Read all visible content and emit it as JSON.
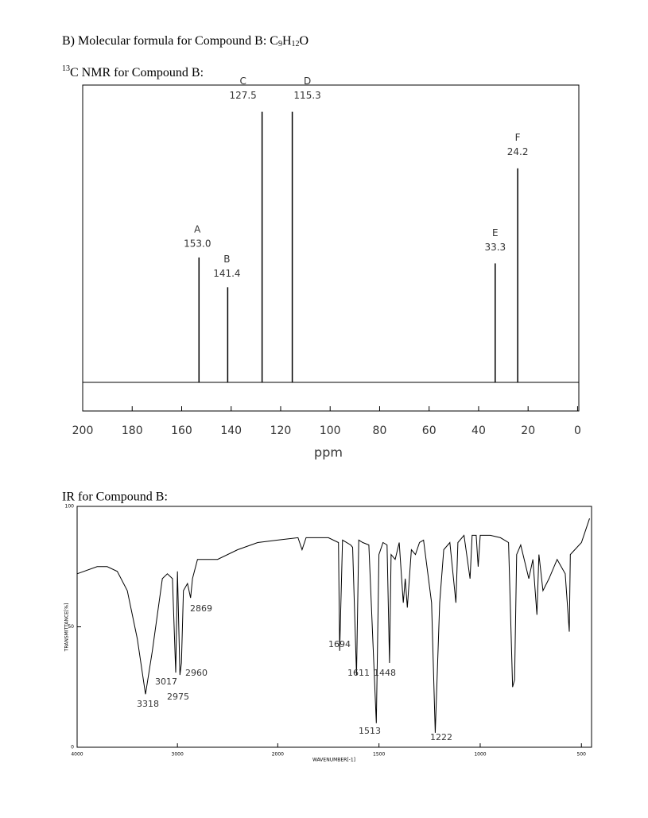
{
  "header": {
    "question": "B) Molecular formula for Compound B:",
    "formula": [
      "C",
      "9",
      "H",
      "12",
      "O"
    ]
  },
  "nmr_title": {
    "sup": "13",
    "text": "C NMR for Compound B:"
  },
  "ir_title": "IR for Compound B:",
  "chart_data": [
    {
      "type": "stick",
      "xlabel": "ppm",
      "xlim": [
        200,
        -0.5
      ],
      "xticks": [
        200,
        180,
        160,
        140,
        120,
        100,
        80,
        60,
        40,
        20,
        0
      ],
      "ylim": [
        0,
        100
      ],
      "labels": [
        "A",
        "B",
        "C",
        "D",
        "E",
        "F"
      ],
      "x": [
        153.0,
        141.4,
        127.5,
        115.3,
        33.3,
        24.2
      ],
      "x_labels": [
        "153.0",
        "141.4",
        "127.5",
        "115.3",
        "33.3",
        "24.2"
      ],
      "values": [
        42,
        32,
        91,
        91,
        40,
        72
      ],
      "color": "#000000"
    },
    {
      "type": "line",
      "xlabel": "WAVENUMBER[-1]",
      "ylabel": "TRANSMITTANCE[%]",
      "xlim": [
        4000,
        450
      ],
      "scale_change_at": 2000,
      "xticks": [
        4000,
        3000,
        2000,
        1500,
        1000,
        500
      ],
      "ylim": [
        0,
        100
      ],
      "yticks": [
        0,
        50,
        100
      ],
      "color": "#000000",
      "peak_labels": [
        3318,
        3017,
        2975,
        2960,
        2869,
        1694,
        1611,
        1448,
        1513,
        1222
      ],
      "x": [
        4000,
        3800,
        3700,
        3600,
        3500,
        3400,
        3318,
        3250,
        3150,
        3100,
        3050,
        3017,
        3000,
        2975,
        2960,
        2940,
        2900,
        2869,
        2850,
        2800,
        2600,
        2400,
        2200,
        2000,
        1900,
        1880,
        1860,
        1750,
        1700,
        1694,
        1680,
        1640,
        1630,
        1611,
        1600,
        1580,
        1550,
        1513,
        1500,
        1480,
        1460,
        1448,
        1440,
        1420,
        1400,
        1380,
        1370,
        1360,
        1340,
        1320,
        1300,
        1280,
        1240,
        1222,
        1200,
        1180,
        1150,
        1120,
        1110,
        1080,
        1050,
        1040,
        1020,
        1010,
        1000,
        950,
        900,
        860,
        840,
        830,
        820,
        800,
        760,
        740,
        720,
        710,
        690,
        660,
        620,
        580,
        560,
        555,
        500,
        460
      ],
      "values": [
        72,
        75,
        75,
        73,
        65,
        45,
        22,
        40,
        70,
        72,
        70,
        31,
        73,
        30,
        35,
        65,
        68,
        62,
        70,
        78,
        78,
        82,
        85,
        86,
        87,
        82,
        87,
        87,
        85,
        40,
        86,
        84,
        83,
        30,
        86,
        85,
        84,
        10,
        80,
        85,
        84,
        35,
        80,
        78,
        85,
        60,
        70,
        58,
        82,
        80,
        85,
        86,
        60,
        6,
        60,
        82,
        85,
        60,
        85,
        88,
        70,
        88,
        88,
        75,
        88,
        88,
        87,
        85,
        25,
        28,
        80,
        84,
        70,
        78,
        55,
        80,
        65,
        70,
        78,
        72,
        48,
        80,
        85,
        95
      ]
    }
  ]
}
